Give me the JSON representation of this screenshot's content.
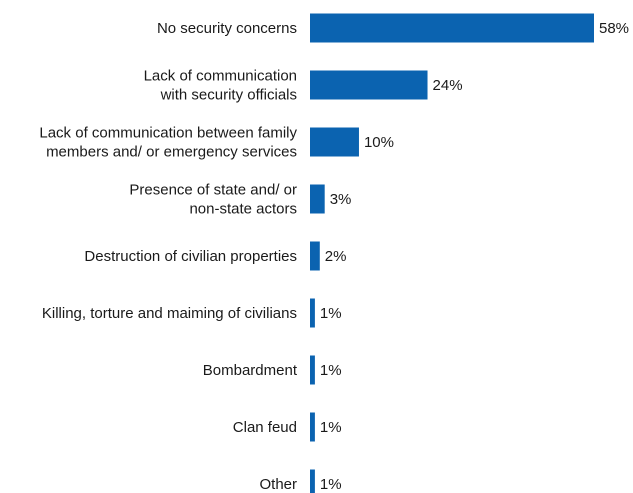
{
  "chart_data": {
    "type": "bar",
    "orientation": "horizontal",
    "title": "",
    "xlabel": "",
    "ylabel": "",
    "unit": "%",
    "xlim": [
      0,
      58
    ],
    "grid": false,
    "legend": "none",
    "bar_color": "#0b63b0",
    "categories": [
      "No security concerns",
      "Lack of communication with security officials",
      "Lack of communication between family members and/ or emergency services",
      "Presence of state and/ or non-state actors",
      "Destruction of civilian properties",
      "Killing, torture and maiming of civilians",
      "Bombardment",
      "Clan feud",
      "Other"
    ],
    "category_label_lines": [
      [
        "No security concerns"
      ],
      [
        "Lack of communication",
        "with security officials"
      ],
      [
        "Lack of communication between family",
        "members and/ or emergency services"
      ],
      [
        "Presence of state and/ or",
        "non-state actors"
      ],
      [
        "Destruction of civilian properties"
      ],
      [
        "Killing, torture and maiming of civilians"
      ],
      [
        "Bombardment"
      ],
      [
        "Clan feud"
      ],
      [
        "Other"
      ]
    ],
    "values": [
      58,
      24,
      10,
      3,
      2,
      1,
      1,
      1,
      1
    ],
    "value_labels": [
      "58%",
      "24%",
      "10%",
      "3%",
      "2%",
      "1%",
      "1%",
      "1%",
      "1%"
    ]
  }
}
